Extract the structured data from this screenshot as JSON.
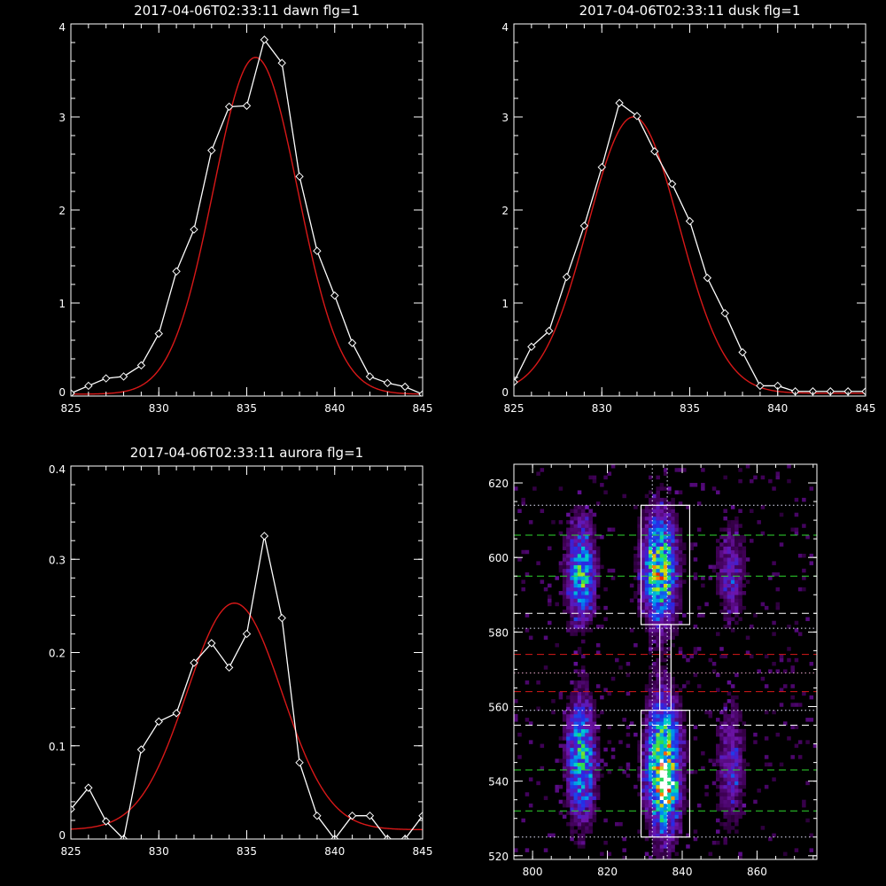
{
  "chart_data": [
    {
      "type": "line",
      "title": "2017-04-06T02:33:11 dawn flg=1",
      "xlim": [
        825,
        845
      ],
      "ylim": [
        0,
        4
      ],
      "xticks": [
        825,
        830,
        835,
        840,
        845
      ],
      "yticks": [
        0,
        1,
        2,
        3,
        4
      ],
      "xlabel": "",
      "ylabel": "",
      "series": [
        {
          "color": "#ffffff",
          "marker": "diamond",
          "x": [
            825,
            826,
            827,
            828,
            829,
            830,
            831,
            832,
            833,
            834,
            835,
            836,
            837,
            838,
            839,
            840,
            841,
            842,
            843,
            844,
            845
          ],
          "y": [
            0.03,
            0.11,
            0.19,
            0.21,
            0.33,
            0.67,
            1.34,
            1.79,
            2.64,
            3.11,
            3.12,
            3.83,
            3.58,
            2.36,
            1.56,
            1.08,
            0.57,
            0.21,
            0.14,
            0.1,
            0.02
          ]
        },
        {
          "color": "#d81818",
          "fit": "gaussian",
          "amplitude": 3.62,
          "center": 835.5,
          "sigma": 2.4,
          "offset": 0.02
        }
      ]
    },
    {
      "type": "line",
      "title": "2017-04-06T02:33:11 dusk flg=1",
      "xlim": [
        825,
        845
      ],
      "ylim": [
        0,
        4
      ],
      "xticks": [
        825,
        830,
        835,
        840,
        845
      ],
      "yticks": [
        0,
        1,
        2,
        3,
        4
      ],
      "xlabel": "",
      "ylabel": "",
      "series": [
        {
          "color": "#ffffff",
          "marker": "diamond",
          "x": [
            825,
            826,
            827,
            828,
            829,
            830,
            831,
            832,
            833,
            834,
            835,
            836,
            837,
            838,
            839,
            840,
            841,
            842,
            843,
            844,
            845
          ],
          "y": [
            0.15,
            0.53,
            0.7,
            1.28,
            1.83,
            2.46,
            3.15,
            3.01,
            2.63,
            2.28,
            1.88,
            1.27,
            0.89,
            0.47,
            0.11,
            0.11,
            0.05,
            0.05,
            0.05,
            0.05,
            0.05
          ]
        },
        {
          "color": "#d81818",
          "fit": "gaussian",
          "amplitude": 2.97,
          "center": 831.8,
          "sigma": 2.6,
          "offset": 0.03
        }
      ]
    },
    {
      "type": "line",
      "title": "2017-04-06T02:33:11 aurora flg=1",
      "xlim": [
        825,
        845
      ],
      "ylim": [
        0,
        0.4
      ],
      "xticks": [
        825,
        830,
        835,
        840,
        845
      ],
      "yticks": [
        0,
        0.1,
        0.2,
        0.3,
        0.4
      ],
      "xlabel": "",
      "ylabel": "",
      "series": [
        {
          "color": "#ffffff",
          "marker": "diamond",
          "x": [
            825,
            826,
            827,
            828,
            829,
            830,
            831,
            832,
            833,
            834,
            835,
            836,
            837,
            838,
            839,
            840,
            841,
            842,
            843,
            844,
            845
          ],
          "y": [
            0.032,
            0.055,
            0.019,
            0.0,
            0.096,
            0.126,
            0.135,
            0.189,
            0.21,
            0.184,
            0.22,
            0.325,
            0.237,
            0.082,
            0.025,
            0.0,
            0.025,
            0.025,
            0.0,
            0.0,
            0.025
          ]
        },
        {
          "color": "#d81818",
          "fit": "gaussian",
          "amplitude": 0.243,
          "center": 834.3,
          "sigma": 2.7,
          "offset": 0.01
        }
      ]
    },
    {
      "type": "heatmap",
      "title": "",
      "xlim": [
        795,
        876
      ],
      "ylim": [
        519,
        625
      ],
      "xticks": [
        800,
        820,
        840,
        860
      ],
      "yticks": [
        520,
        540,
        560,
        580,
        600,
        620
      ],
      "xlabel": "",
      "ylabel": "",
      "colormap": "rainbow",
      "columns": [
        {
          "center": 813,
          "width": 4
        },
        {
          "center": 834,
          "width": 4.5
        },
        {
          "center": 853,
          "width": 4
        }
      ],
      "clusters": [
        {
          "x": 813,
          "y": 596,
          "sx": 2.6,
          "sy": 9,
          "peak": 0.55
        },
        {
          "x": 813,
          "y": 546,
          "sx": 2.6,
          "sy": 11,
          "peak": 0.55
        },
        {
          "x": 834,
          "y": 597,
          "sx": 3.0,
          "sy": 10,
          "peak": 0.72
        },
        {
          "x": 835,
          "y": 544,
          "sx": 3.0,
          "sy": 12,
          "peak": 0.8
        },
        {
          "x": 836,
          "y": 538,
          "sx": 1.5,
          "sy": 2.5,
          "peak": 0.45
        },
        {
          "x": 853,
          "y": 596,
          "sx": 2.6,
          "sy": 9,
          "peak": 0.25
        },
        {
          "x": 853,
          "y": 545,
          "sx": 2.6,
          "sy": 11,
          "peak": 0.25
        }
      ],
      "boxes": [
        {
          "x0": 829,
          "x1": 842,
          "y0": 582,
          "y1": 614,
          "color": "#ffffff"
        },
        {
          "x0": 829,
          "x1": 842,
          "y0": 525,
          "y1": 559,
          "color": "#ffffff"
        },
        {
          "x0": 834,
          "x1": 837,
          "y0": 559,
          "y1": 582,
          "color": "#ffffff"
        }
      ],
      "hlines": [
        {
          "y": 614,
          "color": "#e8e8ff",
          "style": "dotted"
        },
        {
          "y": 606,
          "color": "#2ed82e",
          "style": "dashed"
        },
        {
          "y": 595,
          "color": "#2ed82e",
          "style": "dashed"
        },
        {
          "y": 585,
          "color": "#ffffff",
          "style": "dashed"
        },
        {
          "y": 581,
          "color": "#e8e8ff",
          "style": "dotted"
        },
        {
          "y": 574,
          "color": "#d81818",
          "style": "dashed"
        },
        {
          "y": 569,
          "color": "#e8a8c8",
          "style": "dotted"
        },
        {
          "y": 564,
          "color": "#d81818",
          "style": "dashed"
        },
        {
          "y": 559,
          "color": "#e8e8ff",
          "style": "dotted"
        },
        {
          "y": 555,
          "color": "#ffffff",
          "style": "dashed"
        },
        {
          "y": 543,
          "color": "#2ed82e",
          "style": "dashed"
        },
        {
          "y": 532,
          "color": "#2ed82e",
          "style": "dashed"
        },
        {
          "y": 525,
          "color": "#e8e8ff",
          "style": "dotted"
        }
      ],
      "vlines": [
        {
          "x": 832,
          "color": "#e8e8ff",
          "style": "dotted"
        },
        {
          "x": 836,
          "color": "#e8e8ff",
          "style": "dotted"
        }
      ]
    }
  ]
}
